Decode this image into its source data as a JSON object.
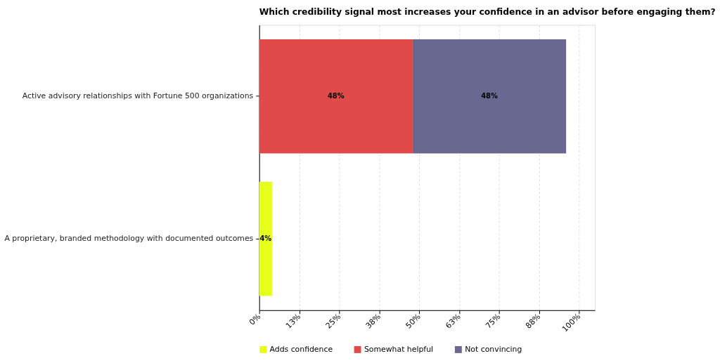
{
  "chart_data": {
    "type": "bar",
    "orientation": "horizontal",
    "stacked": true,
    "title": "Which credibility signal most increases your confidence in an advisor before engaging them?",
    "categories": [
      "Active advisory relationships with Fortune 500 organizations",
      "A proprietary, branded methodology with documented outcomes"
    ],
    "series": [
      {
        "name": "Adds confidence",
        "color": "#e5ff1a",
        "values": [
          0,
          4
        ],
        "value_labels": [
          null,
          "4%"
        ]
      },
      {
        "name": "Somewhat helpful",
        "color": "#e04a48",
        "values": [
          48,
          0
        ],
        "value_labels": [
          "48%",
          null
        ]
      },
      {
        "name": "Not convincing",
        "color": "#696891",
        "values": [
          48,
          0
        ],
        "value_labels": [
          "48%",
          null
        ]
      }
    ],
    "xlim": [
      0,
      105
    ],
    "xticks": [
      {
        "value": 0,
        "label": "0%"
      },
      {
        "value": 12.5,
        "label": "13%"
      },
      {
        "value": 25,
        "label": "25%"
      },
      {
        "value": 37.5,
        "label": "38%"
      },
      {
        "value": 50,
        "label": "50%"
      },
      {
        "value": 62.5,
        "label": "63%"
      },
      {
        "value": 75,
        "label": "75%"
      },
      {
        "value": 87.5,
        "label": "88%"
      },
      {
        "value": 100,
        "label": "100%"
      }
    ],
    "grid": "x",
    "legend": "bottom"
  }
}
